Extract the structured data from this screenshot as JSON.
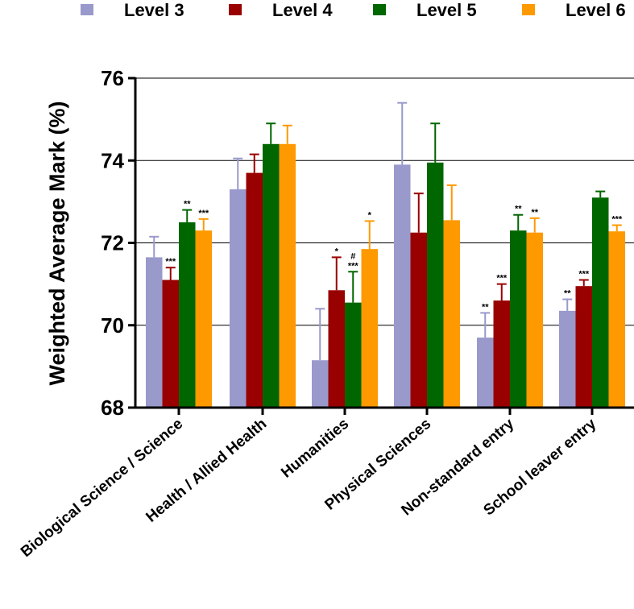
{
  "chart_data": {
    "type": "bar",
    "title": "",
    "xlabel": "",
    "ylabel": "Weighted Average Mark (%)",
    "ylim": [
      68,
      76
    ],
    "yticks": [
      68,
      70,
      72,
      74,
      76
    ],
    "grid": "horizontal",
    "legend_position": "top",
    "categories": [
      "Biological Science / Science",
      "Health / Allied Health",
      "Humanities",
      "Physical Sciences",
      "Non-standard entry",
      "School leaver entry"
    ],
    "series": [
      {
        "name": "Level 3",
        "color": "#9999cc",
        "values": [
          71.65,
          73.3,
          69.15,
          73.9,
          69.7,
          70.35
        ],
        "errors": [
          0.5,
          0.75,
          1.25,
          1.5,
          0.6,
          0.28
        ],
        "annotations": [
          "",
          "",
          "",
          "",
          "**",
          "**"
        ]
      },
      {
        "name": "Level 4",
        "color": "#990000",
        "values": [
          71.1,
          73.7,
          70.85,
          72.25,
          70.6,
          70.95
        ],
        "errors": [
          0.3,
          0.45,
          0.8,
          0.95,
          0.4,
          0.15
        ],
        "annotations": [
          "***",
          "",
          "*",
          "",
          "***",
          "***"
        ]
      },
      {
        "name": "Level 5",
        "color": "#006600",
        "values": [
          72.5,
          74.4,
          70.55,
          73.95,
          72.3,
          73.1
        ],
        "errors": [
          0.3,
          0.5,
          0.75,
          0.95,
          0.38,
          0.15
        ],
        "annotations": [
          "**",
          "",
          "#\n***",
          "",
          "**",
          ""
        ]
      },
      {
        "name": "Level 6",
        "color": "#ff9900",
        "values": [
          72.3,
          74.4,
          71.85,
          72.55,
          72.25,
          72.28
        ],
        "errors": [
          0.28,
          0.45,
          0.68,
          0.85,
          0.35,
          0.15
        ],
        "annotations": [
          "***",
          "",
          "*",
          "",
          "**",
          "***"
        ]
      }
    ]
  }
}
